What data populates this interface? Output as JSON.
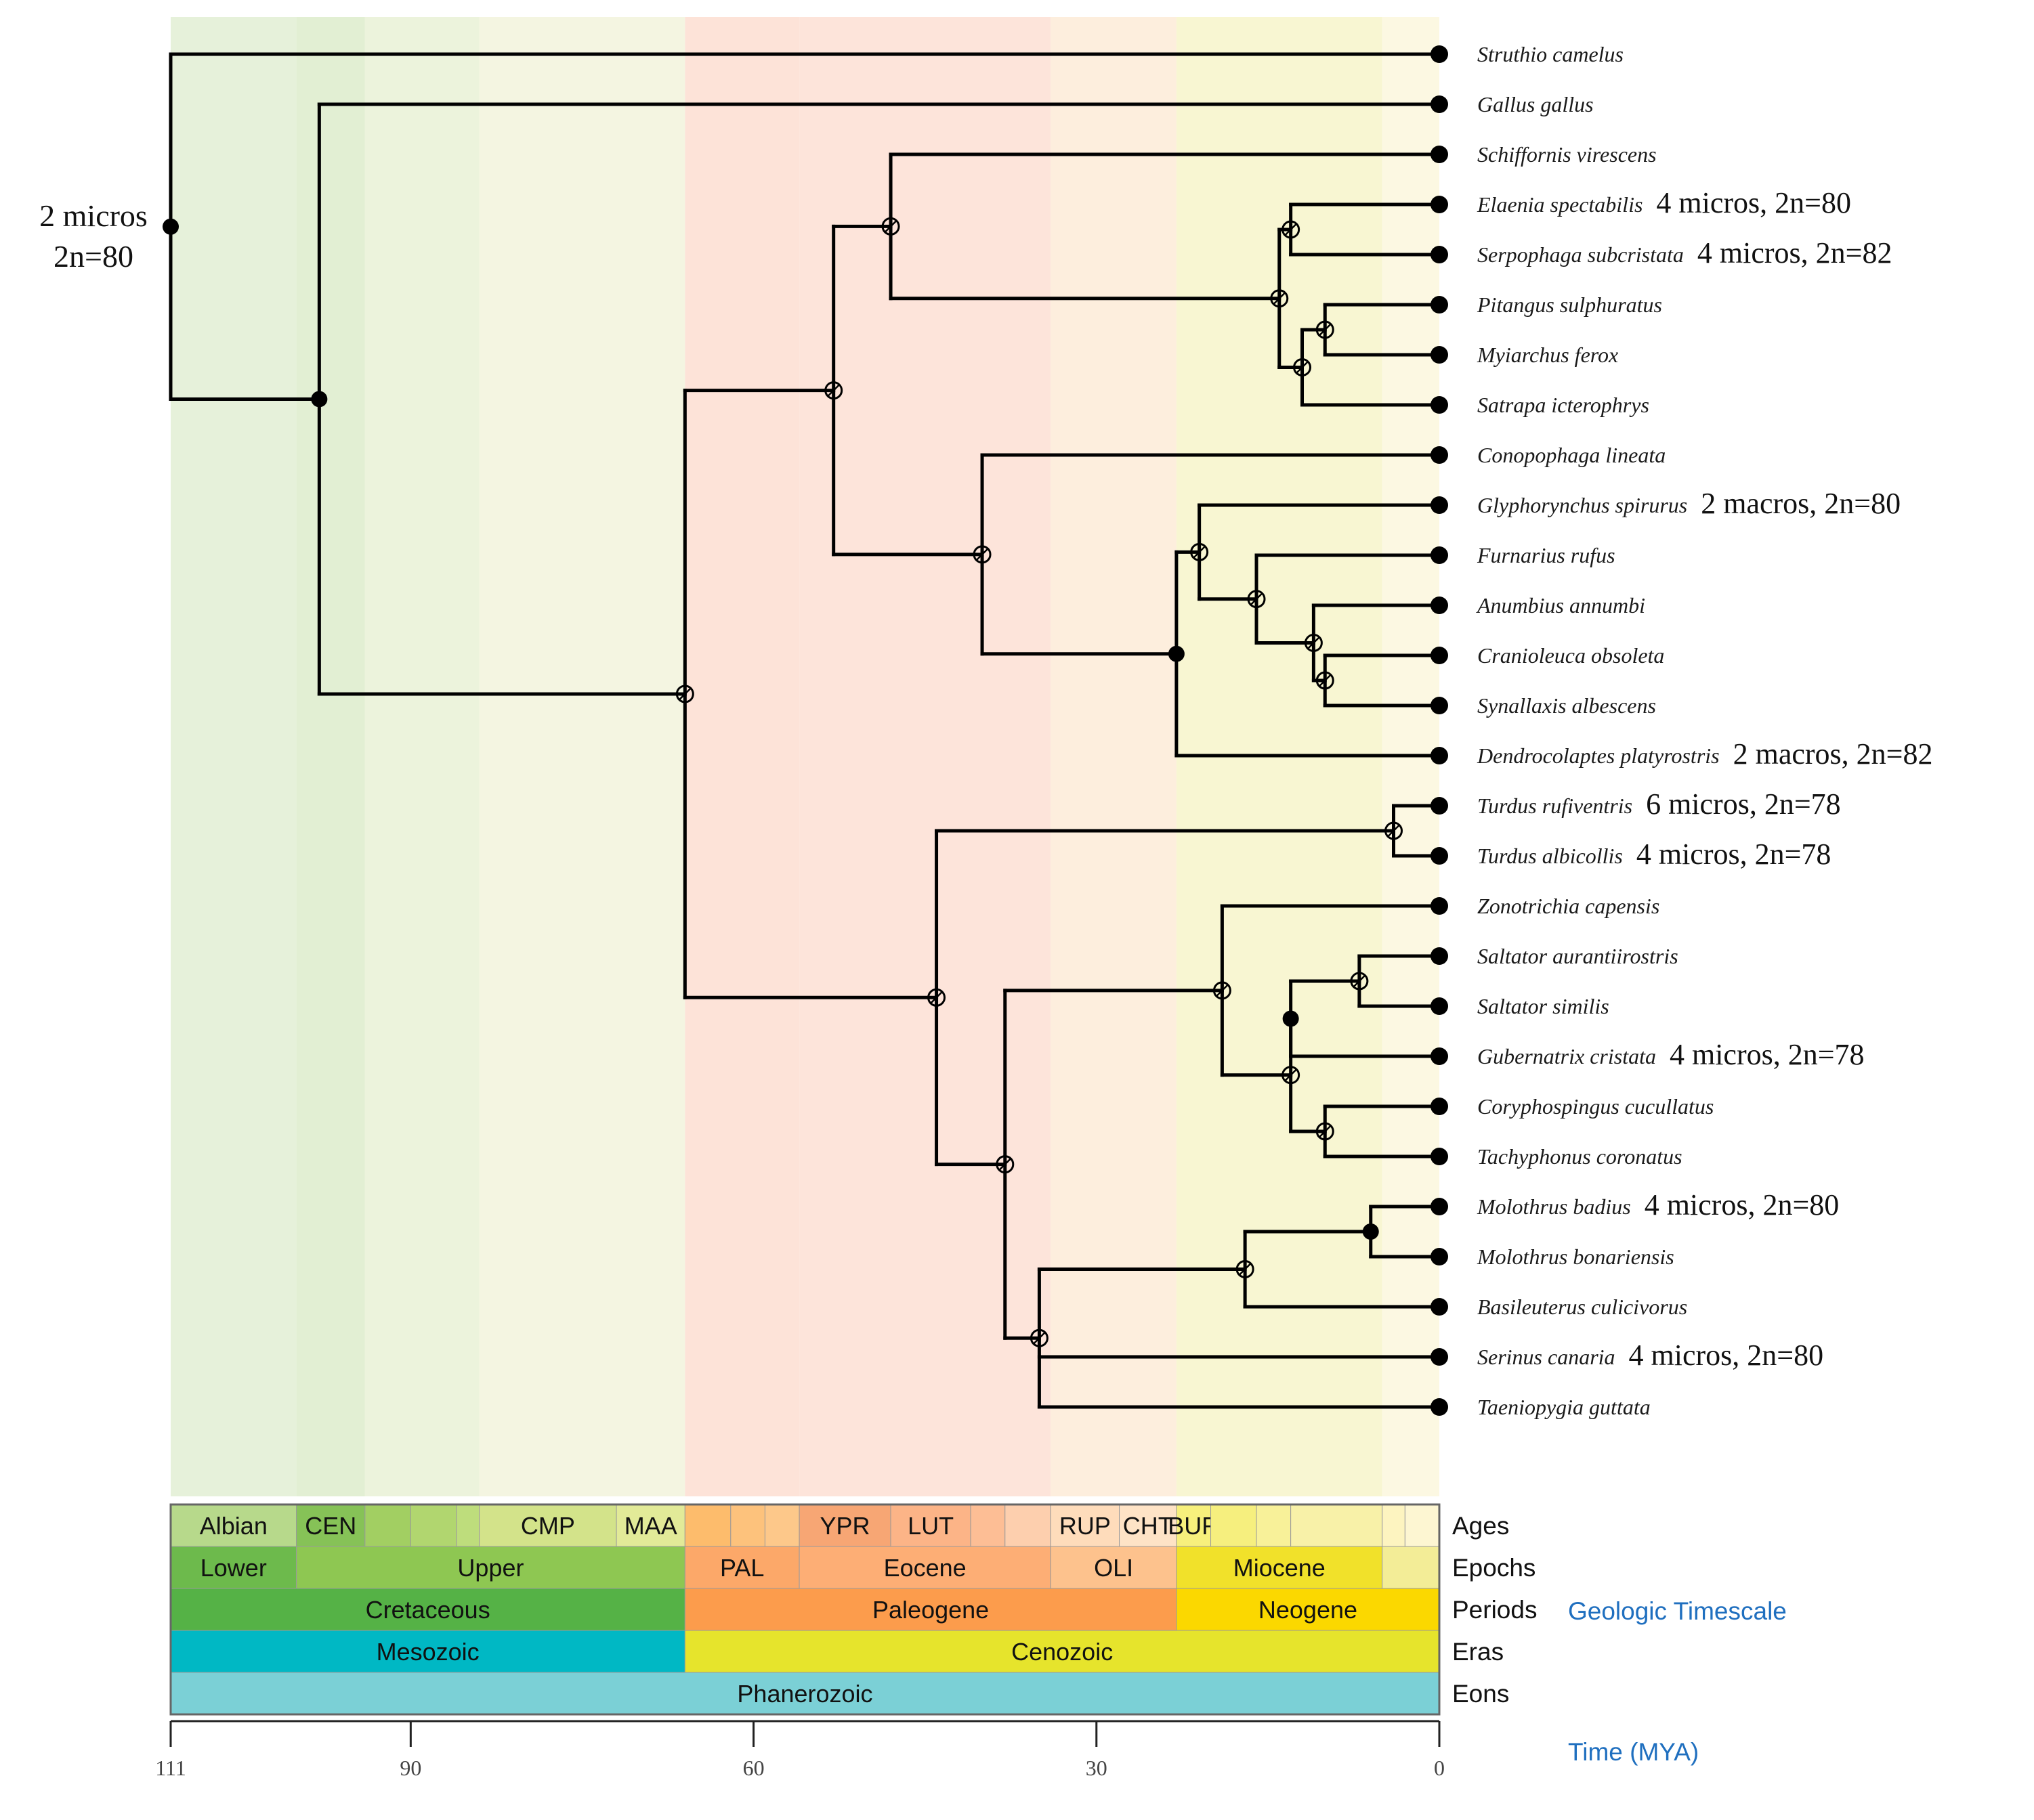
{
  "colors": {
    "branch": "#000000",
    "axis_label": "#1f6fbf",
    "background_mesozoic": "#e6f1da",
    "background_paleogene": "#fde3d8",
    "background_neogene": "#f8f6d2"
  },
  "tree": {
    "root_annotation": {
      "line1": "2 micros",
      "line2": "2n=80"
    },
    "taxa": [
      {
        "name": "Struthio camelus"
      },
      {
        "name": "Gallus gallus"
      },
      {
        "name": "Schiffornis virescens"
      },
      {
        "name": "Elaenia spectabilis",
        "karyotype": "4 micros, 2n=80"
      },
      {
        "name": "Serpophaga subcristata",
        "karyotype": "4 micros, 2n=82"
      },
      {
        "name": "Pitangus sulphuratus"
      },
      {
        "name": "Myiarchus ferox"
      },
      {
        "name": "Satrapa icterophrys"
      },
      {
        "name": "Conopophaga lineata"
      },
      {
        "name": "Glyphorynchus spirurus",
        "karyotype": "2 macros, 2n=80"
      },
      {
        "name": "Furnarius rufus"
      },
      {
        "name": "Anumbius annumbi"
      },
      {
        "name": "Cranioleuca obsoleta"
      },
      {
        "name": "Synallaxis albescens"
      },
      {
        "name": "Dendrocolaptes platyrostris",
        "karyotype": "2 macros, 2n=82"
      },
      {
        "name": "Turdus rufiventris",
        "karyotype": "6 micros, 2n=78"
      },
      {
        "name": "Turdus albicollis",
        "karyotype": "4 micros, 2n=78"
      },
      {
        "name": "Zonotrichia capensis"
      },
      {
        "name": "Saltator aurantiirostris"
      },
      {
        "name": "Saltator similis"
      },
      {
        "name": "Gubernatrix cristata",
        "karyotype": "4 micros, 2n=78"
      },
      {
        "name": "Coryphospingus cucullatus"
      },
      {
        "name": "Tachyphonus coronatus"
      },
      {
        "name": "Molothrus badius",
        "karyotype": "4 micros, 2n=80"
      },
      {
        "name": "Molothrus bonariensis"
      },
      {
        "name": "Basileuterus culicivorus"
      },
      {
        "name": "Serinus canaria",
        "karyotype": "4 micros, 2n=80"
      },
      {
        "name": "Taeniopygia guttata"
      }
    ],
    "nodes": [
      {
        "id": "n1",
        "age_mya": 111,
        "children": [
          "t0",
          "n2"
        ],
        "marker": "filled"
      },
      {
        "id": "n2",
        "age_mya": 98,
        "children": [
          "t1",
          "n3"
        ],
        "marker": "filled"
      },
      {
        "id": "n3",
        "age_mya": 66,
        "children": [
          "n4",
          "n15"
        ],
        "marker": "open"
      },
      {
        "id": "n4",
        "age_mya": 53,
        "children": [
          "n5",
          "n10"
        ],
        "marker": "open"
      },
      {
        "id": "n5",
        "age_mya": 48,
        "children": [
          "t2",
          "n6"
        ],
        "marker": "open"
      },
      {
        "id": "n6",
        "age_mya": 14,
        "children": [
          "n7",
          "n8"
        ],
        "marker": "open"
      },
      {
        "id": "n7",
        "age_mya": 13,
        "children": [
          "t3",
          "t4"
        ],
        "marker": "open"
      },
      {
        "id": "n8",
        "age_mya": 12,
        "children": [
          "n9",
          "t7"
        ],
        "marker": "open"
      },
      {
        "id": "n9",
        "age_mya": 10,
        "children": [
          "t5",
          "t6"
        ],
        "marker": "open"
      },
      {
        "id": "n10",
        "age_mya": 40,
        "children": [
          "t8",
          "n11"
        ],
        "marker": "open"
      },
      {
        "id": "n11",
        "age_mya": 23,
        "children": [
          "n12",
          "t14"
        ],
        "marker": "filled"
      },
      {
        "id": "n12",
        "age_mya": 21,
        "children": [
          "t9",
          "n13"
        ],
        "marker": "open"
      },
      {
        "id": "n13",
        "age_mya": 16,
        "children": [
          "t10",
          "n14"
        ],
        "marker": "open"
      },
      {
        "id": "n14",
        "age_mya": 11,
        "children": [
          "t11",
          "n14b"
        ],
        "marker": "open"
      },
      {
        "id": "n14b",
        "age_mya": 10,
        "children": [
          "t12",
          "t13"
        ],
        "marker": "open"
      },
      {
        "id": "n15",
        "age_mya": 44,
        "children": [
          "n16",
          "n17"
        ],
        "marker": "open"
      },
      {
        "id": "n16",
        "age_mya": 4,
        "children": [
          "t15",
          "t16"
        ],
        "marker": "open"
      },
      {
        "id": "n17",
        "age_mya": 38,
        "children": [
          "n18",
          "n23"
        ],
        "marker": "open"
      },
      {
        "id": "n18",
        "age_mya": 19,
        "children": [
          "t17",
          "n19"
        ],
        "marker": "open"
      },
      {
        "id": "n19",
        "age_mya": 13,
        "children": [
          "n20",
          "n22"
        ],
        "marker": "open"
      },
      {
        "id": "n20",
        "age_mya": 13,
        "children": [
          "n21",
          "t20"
        ],
        "marker": "filled"
      },
      {
        "id": "n21",
        "age_mya": 7,
        "children": [
          "t18",
          "t19"
        ],
        "marker": "open"
      },
      {
        "id": "n22",
        "age_mya": 10,
        "children": [
          "t21",
          "t22"
        ],
        "marker": "open"
      },
      {
        "id": "n23",
        "age_mya": 35,
        "children": [
          "n24",
          "t26",
          "t27"
        ],
        "marker": "open"
      },
      {
        "id": "n24",
        "age_mya": 17,
        "children": [
          "n25",
          "t25"
        ],
        "marker": "open"
      },
      {
        "id": "n25",
        "age_mya": 6,
        "children": [
          "t23",
          "t24"
        ],
        "marker": "filled"
      }
    ]
  },
  "timescale": {
    "side_title": "Geologic Timescale",
    "row_labels": {
      "ages": "Ages",
      "epochs": "Epochs",
      "periods": "Periods",
      "eras": "Eras",
      "eons": "Eons"
    },
    "ages": [
      {
        "start": 111,
        "end": 100,
        "color": "#b7d98b",
        "label": "Albian"
      },
      {
        "start": 100,
        "end": 94,
        "color": "#86c257",
        "label": "CEN"
      },
      {
        "start": 94,
        "end": 90,
        "color": "#a2cf62",
        "label": ""
      },
      {
        "start": 90,
        "end": 86,
        "color": "#b1d66f",
        "label": ""
      },
      {
        "start": 86,
        "end": 84,
        "color": "#bedd7c",
        "label": ""
      },
      {
        "start": 84,
        "end": 72,
        "color": "#d3e38a",
        "label": "CMP"
      },
      {
        "start": 72,
        "end": 66,
        "color": "#e2ea98",
        "label": "MAA"
      },
      {
        "start": 66,
        "end": 62,
        "color": "#fdbc6c",
        "label": ""
      },
      {
        "start": 62,
        "end": 59,
        "color": "#fdc27c",
        "label": ""
      },
      {
        "start": 59,
        "end": 56,
        "color": "#fdc88a",
        "label": ""
      },
      {
        "start": 56,
        "end": 48,
        "color": "#f7a674",
        "label": "YPR"
      },
      {
        "start": 48,
        "end": 41,
        "color": "#fcb487",
        "label": "LUT"
      },
      {
        "start": 41,
        "end": 38,
        "color": "#fdbe95",
        "label": ""
      },
      {
        "start": 38,
        "end": 34,
        "color": "#fdcfae",
        "label": ""
      },
      {
        "start": 34,
        "end": 28,
        "color": "#fedcbb",
        "label": "RUP"
      },
      {
        "start": 28,
        "end": 23,
        "color": "#fee3c6",
        "label": "CHT"
      },
      {
        "start": 23,
        "end": 20,
        "color": "#f7f07c",
        "label": "BUR"
      },
      {
        "start": 20,
        "end": 16,
        "color": "#f6ef7e",
        "label": ""
      },
      {
        "start": 16,
        "end": 13,
        "color": "#f8f199",
        "label": ""
      },
      {
        "start": 13,
        "end": 5,
        "color": "#f8f1a8",
        "label": ""
      },
      {
        "start": 5,
        "end": 3,
        "color": "#fdf4c0",
        "label": ""
      },
      {
        "start": 3,
        "end": 0,
        "color": "#fdf6d2",
        "label": ""
      }
    ],
    "epochs": [
      {
        "start": 111,
        "end": 100,
        "color": "#6dba4c",
        "label": "Lower"
      },
      {
        "start": 100,
        "end": 66,
        "color": "#8ec752",
        "label": "Upper"
      },
      {
        "start": 66,
        "end": 56,
        "color": "#fca869",
        "label": "PAL"
      },
      {
        "start": 56,
        "end": 34,
        "color": "#fdae75",
        "label": "Eocene"
      },
      {
        "start": 34,
        "end": 23,
        "color": "#fdc28d",
        "label": "OLI"
      },
      {
        "start": 23,
        "end": 5,
        "color": "#f1e12a",
        "label": "Miocene"
      },
      {
        "start": 5,
        "end": 0,
        "color": "#f3ed97",
        "label": ""
      }
    ],
    "periods": [
      {
        "start": 111,
        "end": 66,
        "color": "#55b246",
        "label": "Cretaceous"
      },
      {
        "start": 66,
        "end": 23,
        "color": "#fc9c4c",
        "label": "Paleogene"
      },
      {
        "start": 23,
        "end": 0,
        "color": "#fbd800",
        "label": "Neogene"
      }
    ],
    "eras": [
      {
        "start": 111,
        "end": 66,
        "color": "#00b8c4",
        "label": "Mesozoic"
      },
      {
        "start": 66,
        "end": 0,
        "color": "#e6e42c",
        "label": "Cenozoic"
      }
    ],
    "eons": [
      {
        "start": 111,
        "end": 0,
        "color": "#7bd0d6",
        "label": "Phanerozoic"
      }
    ]
  },
  "axis": {
    "title": "Time (MYA)",
    "min": 0,
    "max": 111,
    "ticks": [
      111,
      90,
      60,
      30,
      0
    ]
  },
  "background_bands": [
    {
      "start": 111,
      "end": 100,
      "color": "#e6f1da"
    },
    {
      "start": 100,
      "end": 94,
      "color": "#e2efd3"
    },
    {
      "start": 94,
      "end": 84,
      "color": "#ecf3dc"
    },
    {
      "start": 84,
      "end": 66,
      "color": "#f4f5e1"
    },
    {
      "start": 66,
      "end": 56,
      "color": "#fde3d8"
    },
    {
      "start": 56,
      "end": 34,
      "color": "#fde4da"
    },
    {
      "start": 34,
      "end": 23,
      "color": "#fdeedd"
    },
    {
      "start": 23,
      "end": 5,
      "color": "#f8f6d2"
    },
    {
      "start": 5,
      "end": 0,
      "color": "#fcf8e2"
    }
  ]
}
